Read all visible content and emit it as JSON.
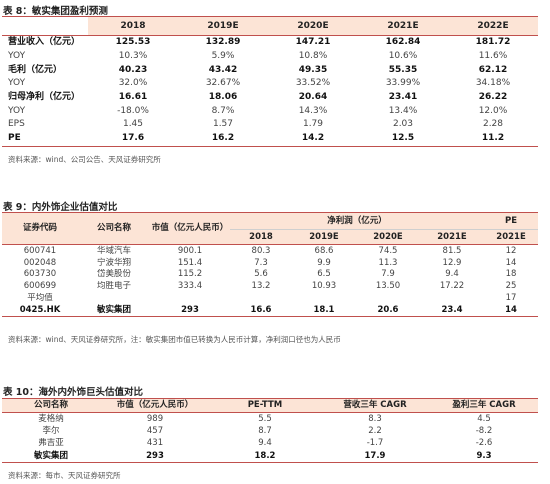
{
  "table8": {
    "caption": "表 8：敏实集团盈利预测",
    "headers": [
      "",
      "2018",
      "2019E",
      "2020E",
      "2021E",
      "2022E"
    ],
    "rows": [
      {
        "bold": true,
        "cells": [
          "营业收入（亿元）",
          "125.53",
          "132.89",
          "147.21",
          "162.84",
          "181.72"
        ]
      },
      {
        "bold": false,
        "cells": [
          "YOY",
          "10.3%",
          "5.9%",
          "10.8%",
          "10.6%",
          "11.6%"
        ]
      },
      {
        "bold": true,
        "cells": [
          "毛利（亿元）",
          "40.23",
          "43.42",
          "49.35",
          "55.35",
          "62.12"
        ]
      },
      {
        "bold": false,
        "cells": [
          "YOY",
          "32.0%",
          "32.67%",
          "33.52%",
          "33.99%",
          "34.18%"
        ]
      },
      {
        "bold": true,
        "cells": [
          "归母净利（亿元）",
          "16.61",
          "18.06",
          "20.64",
          "23.41",
          "26.22"
        ]
      },
      {
        "bold": false,
        "cells": [
          "YOY",
          "-18.0%",
          "8.7%",
          "14.3%",
          "13.4%",
          "12.0%"
        ]
      },
      {
        "bold": false,
        "cells": [
          "EPS",
          "1.45",
          "1.57",
          "1.79",
          "2.03",
          "2.28"
        ]
      },
      {
        "bold": true,
        "cells": [
          "PE",
          "17.6",
          "16.2",
          "14.2",
          "12.5",
          "11.2"
        ]
      }
    ],
    "source": "资料来源：wind、公司公告、天风证券研究所"
  },
  "table9": {
    "caption": "表 9：内外饰企业估值对比",
    "headers_top": {
      "code": "证券代码",
      "name": "公司名称",
      "mktcap": "市值（亿元人民币）",
      "profit": "净利润（亿元）",
      "pe": "PE"
    },
    "headers_years": [
      "2018",
      "2019E",
      "2020E",
      "2021E",
      "2021E"
    ],
    "rows": [
      {
        "bold": false,
        "cells": [
          "600741",
          "华域汽车",
          "900.1",
          "80.3",
          "68.6",
          "74.5",
          "81.5",
          "12"
        ]
      },
      {
        "bold": false,
        "cells": [
          "002048",
          "宁波华翔",
          "151.4",
          "7.3",
          "9.9",
          "11.3",
          "12.9",
          "14"
        ]
      },
      {
        "bold": false,
        "cells": [
          "603730",
          "岱美股份",
          "115.2",
          "5.6",
          "6.5",
          "7.9",
          "9.4",
          "18"
        ]
      },
      {
        "bold": false,
        "cells": [
          "600699",
          "均胜电子",
          "333.4",
          "13.2",
          "10.93",
          "13.50",
          "17.22",
          "25"
        ]
      },
      {
        "bold": false,
        "cells": [
          "平均值",
          "",
          "",
          "",
          "",
          "",
          "",
          "17"
        ]
      },
      {
        "bold": true,
        "cells": [
          "0425.HK",
          "敏实集团",
          "293",
          "16.6",
          "18.1",
          "20.6",
          "23.4",
          "14"
        ]
      }
    ],
    "source": "资料来源：wind、天风证券研究所，注：敏实集团市值已转换为人民币计算，净利润口径也为人民币"
  },
  "table10": {
    "caption": "表 10：海外内外饰巨头估值对比",
    "headers": [
      "公司名称",
      "市值（亿元人民币）",
      "PE-TTM",
      "营收三年 CAGR",
      "盈利三年 CAGR"
    ],
    "rows": [
      {
        "bold": false,
        "cells": [
          "麦格纳",
          "989",
          "5.5",
          "8.3",
          "4.5"
        ]
      },
      {
        "bold": false,
        "cells": [
          "李尔",
          "457",
          "8.7",
          "2.2",
          "-8.2"
        ]
      },
      {
        "bold": false,
        "cells": [
          "弗吉亚",
          "431",
          "9.4",
          "-1.7",
          "-2.6"
        ]
      },
      {
        "bold": true,
        "cells": [
          "敏实集团",
          "293",
          "18.2",
          "17.9",
          "9.3"
        ]
      }
    ],
    "source": "资料来源：每市、天风证券研究所"
  }
}
